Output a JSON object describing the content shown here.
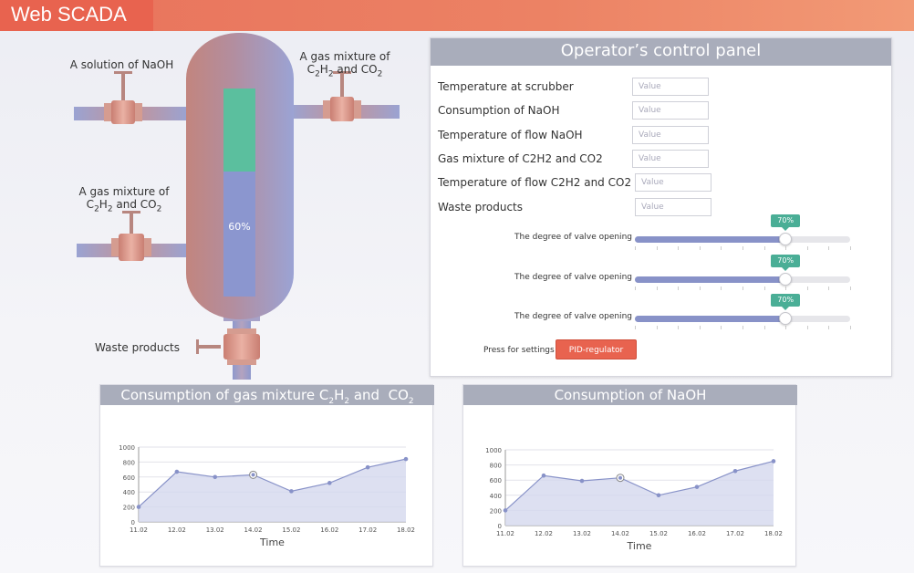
{
  "header": {
    "app_title": "Web SCADA"
  },
  "diagram": {
    "label_naoh": "A solution of NaOH",
    "label_gas_top_line1": "A gas mixture of",
    "label_gas_top_line2_prefix": "C",
    "label_gas_left_line1": "A gas mixture of",
    "label_waste": "Waste products",
    "tank_level_text": "60%",
    "tank_level_fraction": 0.6,
    "colors": {
      "tank": "#9aa3d2",
      "tank_red": "#c98f86",
      "liquid": "#8b96cf",
      "foam": "#5bbf9e",
      "pipe": "#9aa3d2",
      "valve": "#d98a7c"
    }
  },
  "control_panel": {
    "title": "Operator’s control panel",
    "params": [
      {
        "label": "Temperature at scrubber",
        "placeholder": "Value"
      },
      {
        "label": "Consumption of NaOH",
        "placeholder": "Value"
      },
      {
        "label": "Temperature of flow NaOH",
        "placeholder": "Value"
      },
      {
        "label": "Gas mixture of  C2H2 and CO2",
        "placeholder": "Value"
      },
      {
        "label": "Temperature of flow C2H2 and CO2",
        "placeholder": "Value"
      },
      {
        "label": "Waste products",
        "placeholder": "Value"
      }
    ],
    "sliders": [
      {
        "label": "The degree of valve opening",
        "value_text": "70%",
        "value": 0.7
      },
      {
        "label": "The degree of valve opening",
        "value_text": "70%",
        "value": 0.7
      },
      {
        "label": "The degree of valve opening",
        "value_text": "70%",
        "value": 0.7
      }
    ],
    "press_label": "Press for settings",
    "pid_button": "PID-regulator",
    "accent": "#e8634f",
    "badge_color": "#4aae96"
  },
  "chart_data": [
    {
      "type": "area",
      "title": "Consumption of gas mixture C2H2 and  CO2",
      "xlabel": "Time",
      "ylabel": "",
      "categories": [
        "11.02",
        "12.02",
        "13.02",
        "14.02",
        "15.02",
        "16.02",
        "17.02",
        "18.02"
      ],
      "values": [
        200,
        670,
        600,
        630,
        410,
        520,
        730,
        840
      ],
      "ylim": [
        0,
        1000
      ],
      "yticks": [
        0,
        200,
        400,
        600,
        800,
        1000
      ],
      "highlighted_index": 3,
      "grid": true,
      "color": "#8892c8"
    },
    {
      "type": "area",
      "title": "Consumption of NaOH",
      "xlabel": "Time",
      "ylabel": "",
      "categories": [
        "11.02",
        "12.02",
        "13.02",
        "14.02",
        "15.02",
        "16.02",
        "17.02",
        "18.02"
      ],
      "values": [
        200,
        660,
        590,
        630,
        400,
        510,
        720,
        850
      ],
      "ylim": [
        0,
        1000
      ],
      "yticks": [
        0,
        200,
        400,
        600,
        800,
        1000
      ],
      "highlighted_index": 3,
      "grid": true,
      "color": "#8892c8"
    }
  ]
}
